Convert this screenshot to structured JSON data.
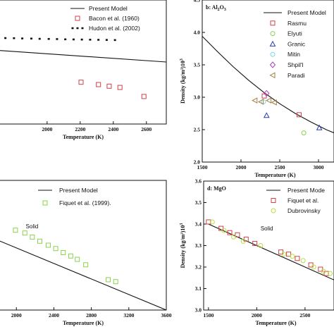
{
  "chart_data": [
    {
      "id": "a",
      "type": "scatter",
      "panel_label": "",
      "xlabel": "Temperature (K)",
      "ylabel": "",
      "xlim": [
        1690,
        2720
      ],
      "ylim": [
        0.0,
        1.0
      ],
      "xticks": [
        2000,
        2200,
        2400,
        2600
      ],
      "xtick_labels": [
        "2000",
        "2200",
        "2400",
        "2600"
      ],
      "yticks": [],
      "ytick_labels": [],
      "legend_position": "top-right",
      "model": {
        "name": "Present Model",
        "style": "solid",
        "x": [
          1690,
          2720
        ],
        "y": [
          0.595,
          0.5
        ]
      },
      "series": [
        {
          "name": "Bacon et al. (1960)",
          "marker": "square",
          "color": "#d0404a",
          "x": [
            2205,
            2310,
            2375,
            2440,
            2585
          ],
          "y": [
            0.337,
            0.318,
            0.305,
            0.295,
            0.222
          ]
        },
        {
          "name": "Hudon et al. (2002)",
          "marker": "dash",
          "color": "#111111",
          "x": [
            1698,
            1748,
            1800,
            1850,
            1905,
            1955,
            2010,
            2060,
            2110,
            2160,
            2210,
            2260,
            2310,
            2360,
            2410
          ],
          "y": [
            0.695,
            0.693,
            0.692,
            0.69,
            0.689,
            0.687,
            0.686,
            0.685,
            0.683,
            0.682,
            0.681,
            0.68,
            0.679,
            0.678,
            0.677
          ]
        }
      ],
      "annotations": []
    },
    {
      "id": "b",
      "type": "scatter",
      "panel_label": "b: Al",
      "panel_label_sub": "2",
      "panel_label_tail": "O",
      "panel_label_sub2": "3",
      "xlabel": "Temperature (K)",
      "ylabel": "Density (kg/m³)10³",
      "xlim": [
        1500,
        3200
      ],
      "ylim": [
        2.0,
        4.5
      ],
      "xticks": [
        1500,
        2000,
        2500,
        3000
      ],
      "xtick_labels": [
        "1500",
        "2000",
        "2500",
        "3000"
      ],
      "yticks": [
        2.0,
        2.5,
        3.0,
        3.5,
        4.0,
        4.5
      ],
      "ytick_labels": [
        "2.0",
        "2.5",
        "3.0",
        "3.5",
        "4.0",
        "4.5"
      ],
      "legend_position": "top-right",
      "model": {
        "name": "Present Model",
        "style": "solid",
        "x": [
          1500,
          1700,
          1900,
          2100,
          2300,
          2500,
          2700,
          2900,
          3100,
          3200
        ],
        "y": [
          3.94,
          3.7,
          3.47,
          3.26,
          3.07,
          2.9,
          2.75,
          2.62,
          2.5,
          2.45
        ]
      },
      "series": [
        {
          "name": "Rasmu",
          "marker": "square",
          "color": "#d0404a",
          "x": [
            2300,
            2750
          ],
          "y": [
            3.02,
            2.73
          ]
        },
        {
          "name": "Elyuti",
          "marker": "circle",
          "color": "#8bd14e",
          "x": [
            2810
          ],
          "y": [
            2.45
          ]
        },
        {
          "name": "Granic",
          "marker": "triangle-up",
          "color": "#2a3aa8",
          "x": [
            2330,
            3010
          ],
          "y": [
            2.72,
            2.53
          ]
        },
        {
          "name": "Mitin",
          "marker": "circle",
          "color": "#70d8e6",
          "x": [
            2290
          ],
          "y": [
            2.93
          ]
        },
        {
          "name": "Shpil'l",
          "marker": "diamond",
          "color": "#b040c0",
          "x": [
            2330
          ],
          "y": [
            3.06
          ]
        },
        {
          "name": "Paradi",
          "marker": "triangle-left",
          "color": "#a08040",
          "x": [
            2180,
            2260,
            2360,
            2430
          ],
          "y": [
            2.95,
            2.93,
            2.95,
            2.92
          ]
        }
      ],
      "annotations": []
    },
    {
      "id": "c",
      "type": "scatter",
      "panel_label": "",
      "xlabel": "Temperature (K)",
      "ylabel": "",
      "xlim": [
        1780,
        3600
      ],
      "ylim": [
        0.0,
        1.0
      ],
      "xticks": [
        2000,
        2400,
        2800,
        3200,
        3600
      ],
      "xtick_labels": [
        "2000",
        "2400",
        "2800",
        "3200",
        "3600"
      ],
      "yticks": [],
      "ytick_labels": [],
      "legend_position": "top-right",
      "model": {
        "name": "Present Model",
        "style": "solid",
        "x": [
          1780,
          3600
        ],
        "y": [
          0.545,
          0.0
        ]
      },
      "series": [
        {
          "name": "Fiquet et al. (1999).",
          "marker": "square",
          "color": "#8bd14e",
          "x": [
            1990,
            2090,
            2170,
            2250,
            2340,
            2420,
            2500,
            2580,
            2650,
            2740,
            2980,
            3060
          ],
          "y": [
            0.616,
            0.594,
            0.563,
            0.531,
            0.5,
            0.474,
            0.443,
            0.417,
            0.391,
            0.349,
            0.234,
            0.219
          ]
        }
      ],
      "annotations": [
        {
          "text": "Solid",
          "x": 2100,
          "y": 0.63
        }
      ]
    },
    {
      "id": "d",
      "type": "scatter",
      "panel_label": "d: MgO",
      "xlabel": "Temperature (K)",
      "ylabel": "Density (kg/m³)10³",
      "xlim": [
        1450,
        2800
      ],
      "ylim": [
        3.0,
        3.6
      ],
      "xticks": [
        1500,
        2000,
        2500
      ],
      "xtick_labels": [
        "1500",
        "2000",
        "2500"
      ],
      "yticks": [
        3.0,
        3.1,
        3.2,
        3.3,
        3.4,
        3.5,
        3.6
      ],
      "ytick_labels": [
        "3.0",
        "3.1",
        "3.2",
        "3.3",
        "3.4",
        "3.5",
        "3.6"
      ],
      "legend_position": "top-right",
      "model": {
        "name": "Present Mode",
        "style": "solid",
        "x": [
          1500,
          2800
        ],
        "y": [
          3.4,
          3.14
        ]
      },
      "series": [
        {
          "name": "Fiquet et al.",
          "marker": "square",
          "color": "#d0404a",
          "x": [
            1500,
            1630,
            1720,
            1800,
            1890,
            1980,
            2250,
            2330,
            2420,
            2560,
            2660,
            2720
          ],
          "y": [
            3.41,
            3.38,
            3.36,
            3.35,
            3.33,
            3.31,
            3.27,
            3.26,
            3.24,
            3.21,
            3.19,
            3.17
          ]
        },
        {
          "name": "Dubrovinsky",
          "marker": "circle",
          "color": "#b8e03c",
          "x": [
            1540,
            1660,
            1760,
            1860,
            2040,
            2280,
            2370,
            2480,
            2590,
            2690,
            2760
          ],
          "y": [
            3.41,
            3.37,
            3.34,
            3.32,
            3.3,
            3.26,
            3.25,
            3.23,
            3.2,
            3.18,
            3.17
          ]
        }
      ],
      "annotations": [
        {
          "text": "Solid",
          "x": 2040,
          "y": 3.37
        }
      ]
    }
  ]
}
